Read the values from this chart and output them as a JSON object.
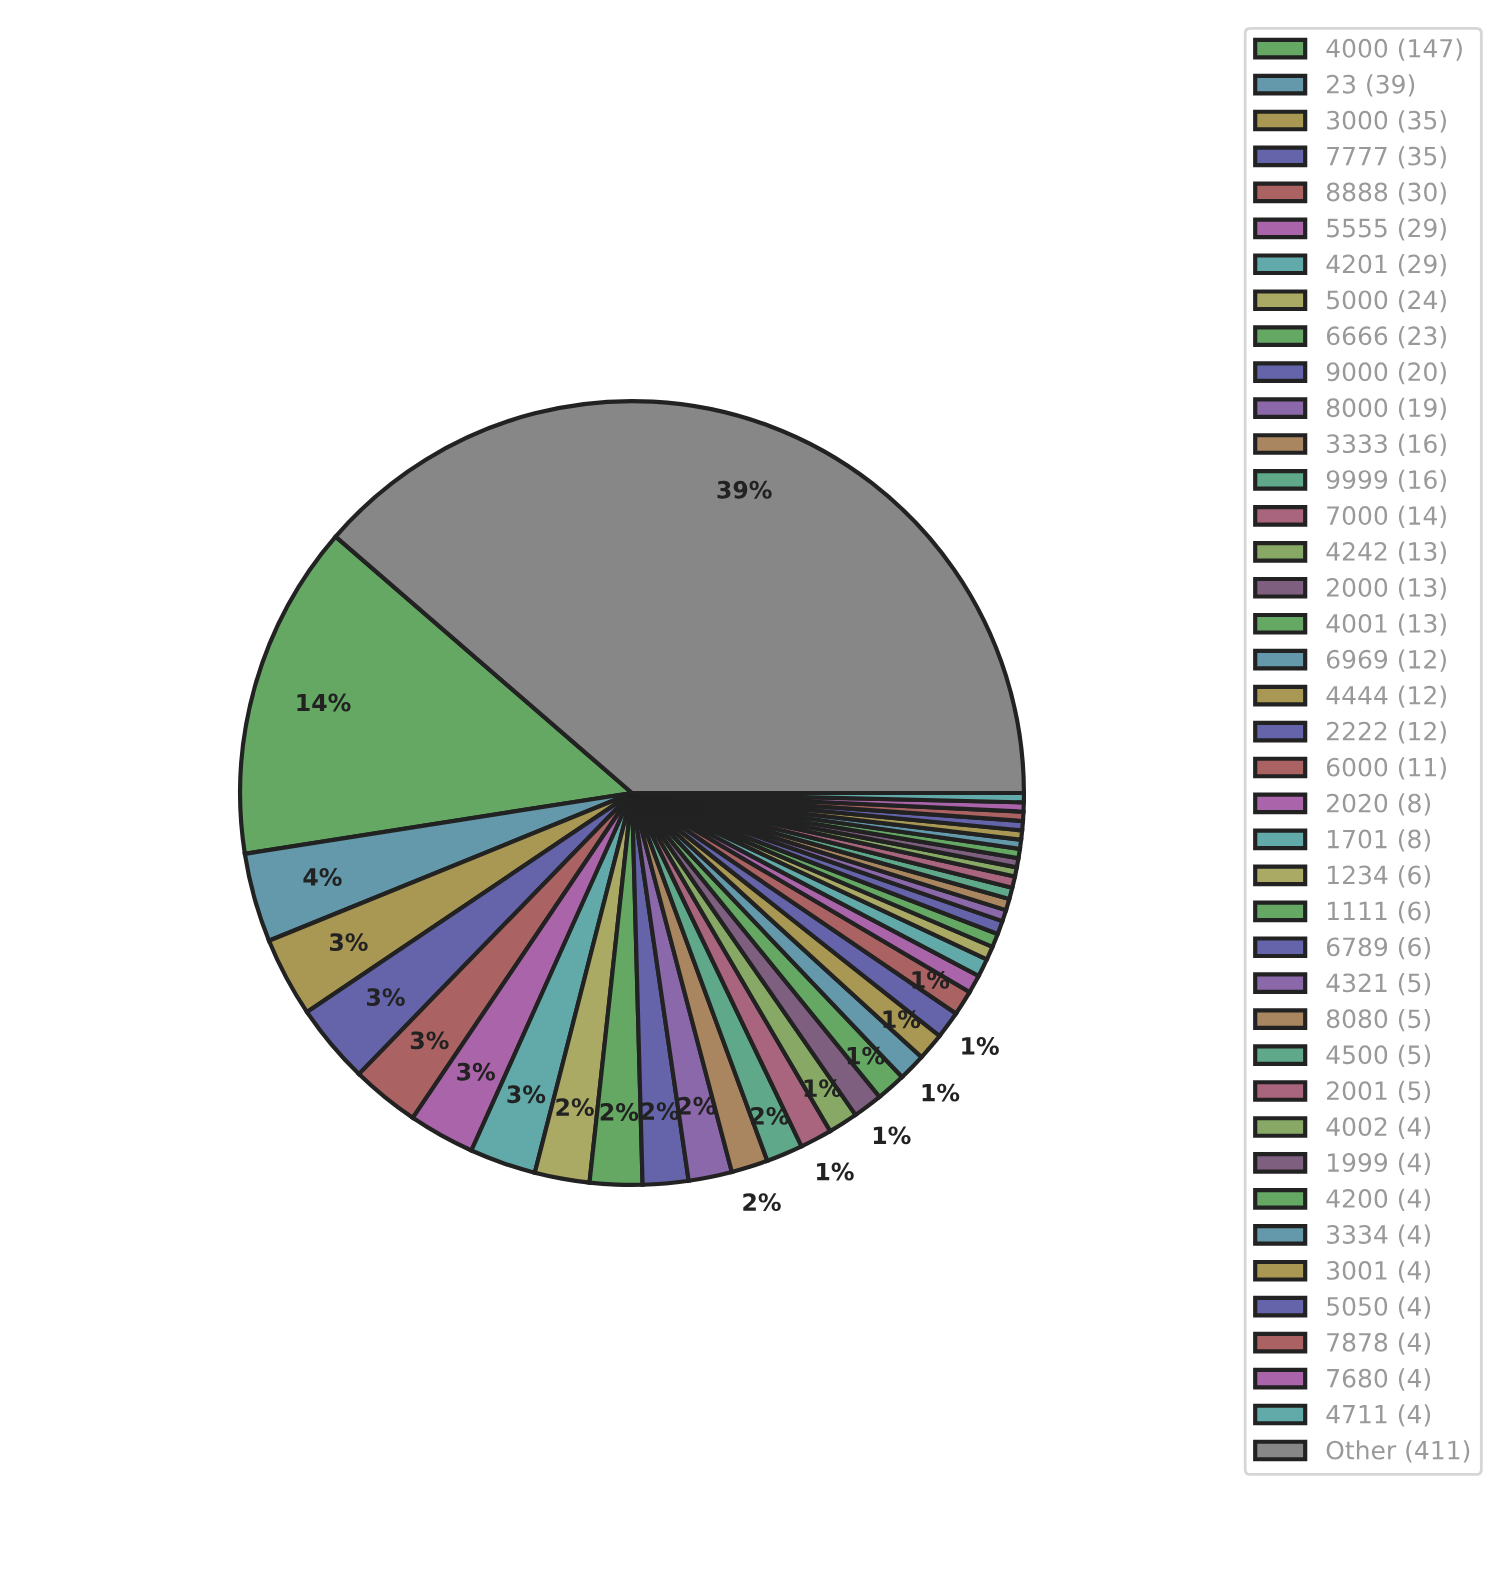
{
  "chart_data": {
    "type": "pie",
    "categories": [
      "4000 (147)",
      "23 (39)",
      "3000 (35)",
      "7777 (35)",
      "8888 (30)",
      "5555 (29)",
      "4201 (29)",
      "5000 (24)",
      "6666 (23)",
      "9000 (20)",
      "8000 (19)",
      "3333 (16)",
      "9999 (16)",
      "7000 (14)",
      "4242 (13)",
      "2000 (13)",
      "4001 (13)",
      "6969 (12)",
      "4444 (12)",
      "2222 (12)",
      "6000 (11)",
      "2020 (8)",
      "1701 (8)",
      "1234 (6)",
      "1111 (6)",
      "6789 (6)",
      "4321 (5)",
      "8080 (5)",
      "4500 (5)",
      "2001 (5)",
      "4002 (4)",
      "1999 (4)",
      "4200 (4)",
      "3334 (4)",
      "3001 (4)",
      "5050 (4)",
      "7878 (4)",
      "7680 (4)",
      "4711 (4)",
      "Other (411)"
    ],
    "values": [
      13.83,
      3.67,
      3.29,
      3.29,
      2.82,
      2.73,
      2.73,
      2.26,
      2.16,
      1.88,
      1.79,
      1.51,
      1.51,
      1.32,
      1.22,
      1.22,
      1.22,
      1.13,
      1.13,
      1.13,
      1.03,
      0.75,
      0.75,
      0.56,
      0.56,
      0.56,
      0.47,
      0.47,
      0.47,
      0.47,
      0.38,
      0.38,
      0.38,
      0.38,
      0.38,
      0.38,
      0.38,
      0.38,
      0.38,
      38.65
    ],
    "value_labels": [
      "14%",
      "4%",
      "3%",
      "3%",
      "3%",
      "3%",
      "3%",
      "2%",
      "2%",
      "2%",
      "2%",
      "2%",
      "2%",
      "1%",
      "1%",
      "1%",
      "1%",
      "1%",
      "1%",
      "1%",
      "1%",
      null,
      null,
      null,
      null,
      null,
      null,
      null,
      null,
      null,
      null,
      null,
      null,
      null,
      null,
      null,
      null,
      null,
      null,
      "39%"
    ],
    "colors": [
      "#64a864",
      "#6399aa",
      "#a99853",
      "#6564aa",
      "#aa6262",
      "#aa64aa",
      "#62aaa9",
      "#aaaa65",
      "#64a864",
      "#6564aa",
      "#8a68aa",
      "#a9865f",
      "#5fa98a",
      "#a9657e",
      "#87a965",
      "#7e5f7f",
      "#64a864",
      "#6399aa",
      "#a99853",
      "#6564aa",
      "#aa6262",
      "#aa64aa",
      "#62aaa9",
      "#aaaa65",
      "#64a864",
      "#6564aa",
      "#8a68aa",
      "#a9865f",
      "#5fa98a",
      "#a9657e",
      "#87a965",
      "#7e5f7f",
      "#64a864",
      "#6399aa",
      "#a99853",
      "#6564aa",
      "#aa6262",
      "#aa64aa",
      "#62aaa9",
      "#878787"
    ],
    "legend": "right"
  }
}
